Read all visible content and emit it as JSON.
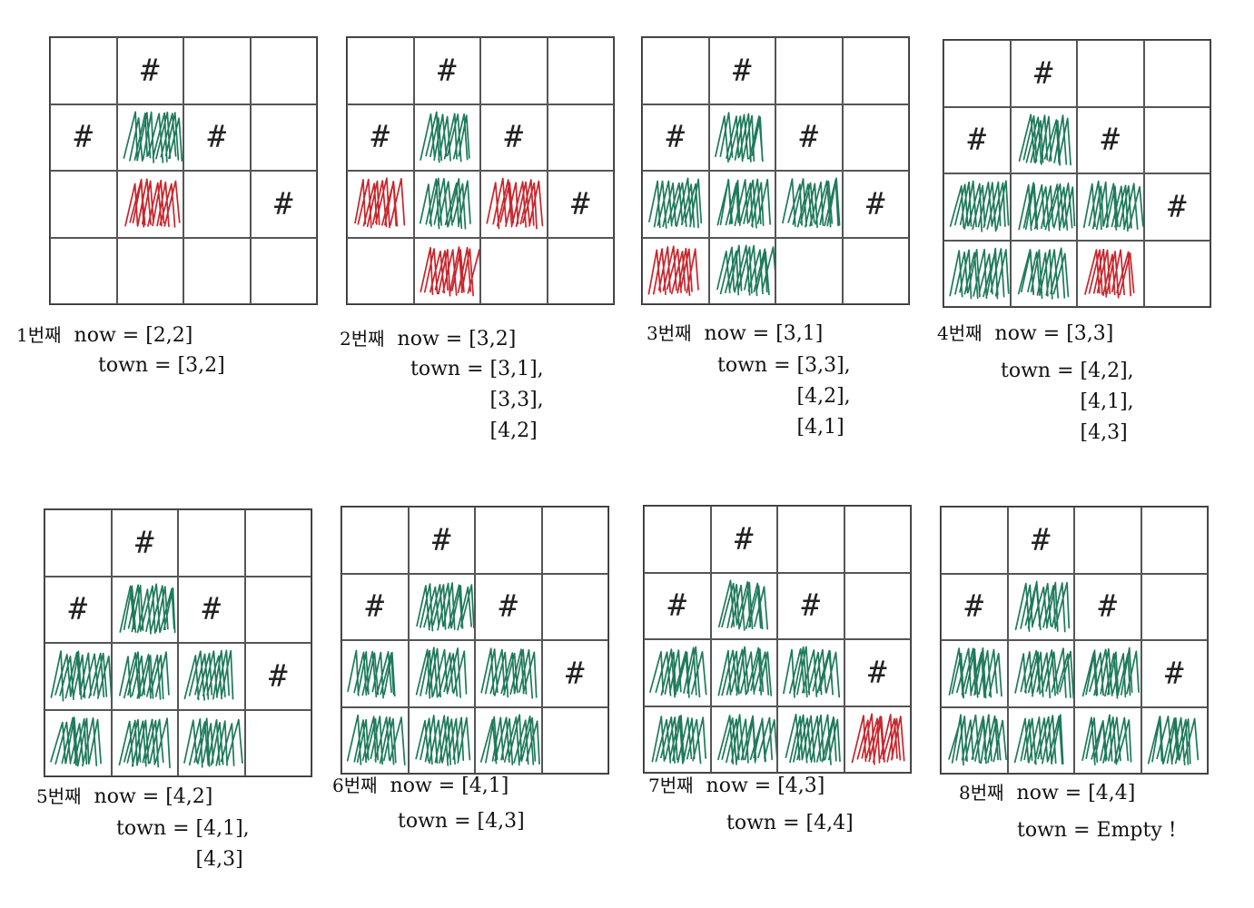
{
  "colors": {
    "visited": "#1f7a5c",
    "current": "#c8262d",
    "line": "#555555"
  },
  "panels": [
    {
      "step": "1번째",
      "now": "[2,2]",
      "town": [
        "[3,2]"
      ],
      "cells": [
        [
          0,
          "#",
          0,
          0
        ],
        [
          "#",
          "g",
          "#",
          0
        ],
        [
          0,
          "r",
          0,
          "#"
        ],
        [
          0,
          0,
          0,
          0
        ]
      ]
    },
    {
      "step": "2번째",
      "now": "[3,2]",
      "town": [
        "[3,1],",
        "[3,3],",
        "[4,2]"
      ],
      "cells": [
        [
          0,
          "#",
          0,
          0
        ],
        [
          "#",
          "g",
          "#",
          0
        ],
        [
          "r",
          "g",
          "r",
          "#"
        ],
        [
          0,
          "r",
          0,
          0
        ]
      ]
    },
    {
      "step": "3번째",
      "now": "[3,1]",
      "town": [
        "[3,3],",
        "[4,2],",
        "[4,1]"
      ],
      "cells": [
        [
          0,
          "#",
          0,
          0
        ],
        [
          "#",
          "g",
          "#",
          0
        ],
        [
          "g",
          "g",
          "g",
          "#"
        ],
        [
          "r",
          "g",
          0,
          0
        ]
      ]
    },
    {
      "step": "4번째",
      "now": "[3,3]",
      "town": [
        "[4,2],",
        "[4,1],",
        "[4,3]"
      ],
      "cells": [
        [
          0,
          "#",
          0,
          0
        ],
        [
          "#",
          "g",
          "#",
          0
        ],
        [
          "g",
          "g",
          "g",
          "#"
        ],
        [
          "g",
          "g",
          "r",
          0
        ]
      ]
    },
    {
      "step": "5번째",
      "now": "[4,2]",
      "town": [
        "[4,1],",
        "[4,3]"
      ],
      "cells": [
        [
          0,
          "#",
          0,
          0
        ],
        [
          "#",
          "g",
          "#",
          0
        ],
        [
          "g",
          "g",
          "g",
          "#"
        ],
        [
          "g",
          "g",
          "g",
          0
        ]
      ]
    },
    {
      "step": "6번째",
      "now": "[4,1]",
      "town": [
        "[4,3]"
      ],
      "cells": [
        [
          0,
          "#",
          0,
          0
        ],
        [
          "#",
          "g",
          "#",
          0
        ],
        [
          "g",
          "g",
          "g",
          "#"
        ],
        [
          "g",
          "g",
          "g",
          0
        ]
      ]
    },
    {
      "step": "7번째",
      "now": "[4,3]",
      "town": [
        "[4,4]"
      ],
      "cells": [
        [
          0,
          "#",
          0,
          0
        ],
        [
          "#",
          "g",
          "#",
          0
        ],
        [
          "g",
          "g",
          "g",
          "#"
        ],
        [
          "g",
          "g",
          "g",
          "r"
        ]
      ]
    },
    {
      "step": "8번째",
      "now": "[4,4]",
      "town": [
        "Empty !"
      ],
      "cells": [
        [
          0,
          "#",
          0,
          0
        ],
        [
          "#",
          "g",
          "#",
          0
        ],
        [
          "g",
          "g",
          "g",
          "#"
        ],
        [
          "g",
          "g",
          "g",
          "g"
        ]
      ]
    }
  ],
  "labels": {
    "now": "now =",
    "town": "town ="
  }
}
